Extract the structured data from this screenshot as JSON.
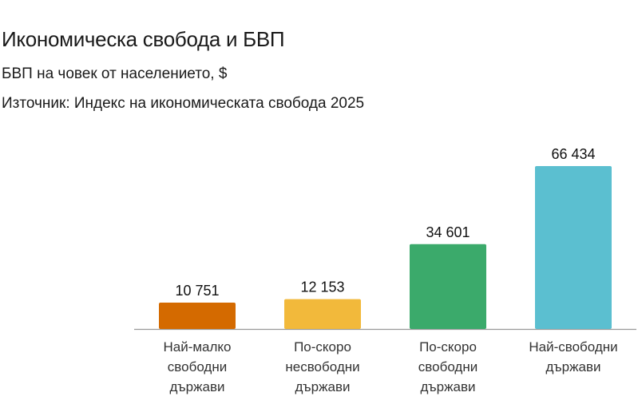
{
  "title": "Икономическа свобода и БВП",
  "subtitle": "БВП на човек от населението, $",
  "source": "Източник: Индекс на икономическата свобода 2025",
  "chart_data": {
    "type": "bar",
    "title": "Икономическа свобода и БВП",
    "subtitle": "БВП на човек от населението, $",
    "xlabel": "",
    "ylabel": "",
    "ylim": [
      0,
      70000
    ],
    "grid": false,
    "legend": "none",
    "categories": [
      [
        "Най-малко",
        "свободни",
        "държави"
      ],
      [
        "По-скоро",
        "несвободни",
        "държави"
      ],
      [
        "По-скоро",
        "свободни",
        "държави"
      ],
      [
        "Най-свободни",
        "държави"
      ]
    ],
    "values": [
      10751,
      12153,
      34601,
      66434
    ],
    "value_labels": [
      "10 751",
      "12 153",
      "34 601",
      "66 434"
    ],
    "colors": [
      "#D46A00",
      "#F2B93B",
      "#3BAA6B",
      "#5BBFD0"
    ],
    "axis_color": "#999999"
  }
}
